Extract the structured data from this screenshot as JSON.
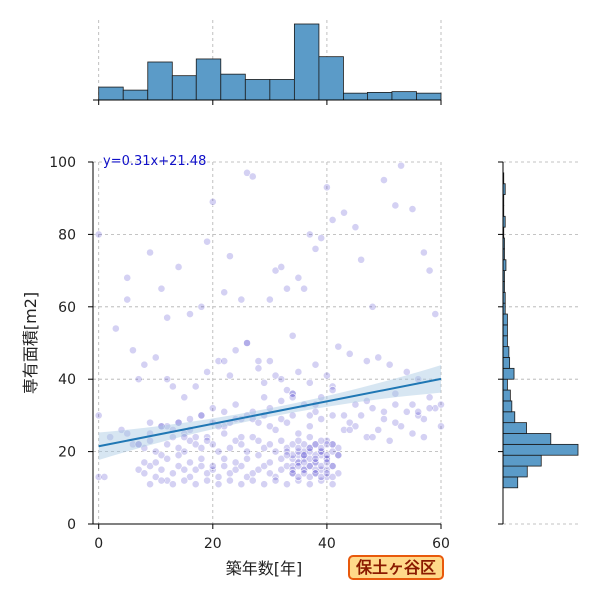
{
  "ward_label": "保土ヶ谷区",
  "colors": {
    "scatter": "#3b2fc9",
    "regression": "#1f77b4",
    "ci_band": "#a6c8e3",
    "hist_fill": "#5b9bc8",
    "hist_edge": "#1a1a1a",
    "grid": "#b0b0b0"
  },
  "chart_data": [
    {
      "type": "scatter",
      "xlabel": "築年数[年]",
      "ylabel": "専有面積[m2]",
      "xlim": [
        -1,
        60
      ],
      "ylim": [
        0,
        100
      ],
      "xticks": [
        0,
        20,
        40,
        60
      ],
      "yticks": [
        0,
        20,
        40,
        60,
        80,
        100
      ],
      "grid": true,
      "regression": {
        "equation": "y=0.31x+21.48",
        "slope": 0.31,
        "intercept": 21.48,
        "x_range": [
          0,
          60
        ]
      },
      "points_x": [
        0,
        0,
        0,
        1,
        3,
        5,
        5,
        6,
        7,
        9,
        11,
        12,
        13,
        14,
        16,
        18,
        19,
        20,
        22,
        23,
        25,
        26,
        27,
        30,
        31,
        32,
        33,
        35,
        36,
        37,
        38,
        39,
        40,
        41,
        43,
        45,
        46,
        48,
        50,
        52,
        53,
        55,
        57,
        58,
        59,
        8,
        10,
        12,
        15,
        17,
        19,
        21,
        23,
        24,
        26,
        28,
        29,
        31,
        33,
        34,
        35,
        37,
        38,
        40,
        41,
        42,
        44,
        47,
        49,
        51,
        54,
        56,
        2,
        4,
        6,
        9,
        11,
        14,
        16,
        18,
        20,
        22,
        24,
        27,
        29,
        30,
        32,
        34,
        36,
        38,
        39,
        41,
        43,
        45,
        47,
        50,
        52,
        55,
        57,
        59,
        7,
        8,
        9,
        10,
        11,
        12,
        13,
        14,
        15,
        16,
        17,
        18,
        19,
        20,
        21,
        22,
        23,
        24,
        25,
        26,
        27,
        28,
        29,
        30,
        31,
        32,
        33,
        34,
        35,
        36,
        37,
        38,
        39,
        40,
        41,
        42,
        7,
        8,
        9,
        10,
        11,
        12,
        13,
        14,
        15,
        16,
        17,
        18,
        19,
        20,
        21,
        22,
        23,
        24,
        25,
        26,
        27,
        28,
        29,
        30,
        31,
        32,
        33,
        34,
        35,
        36,
        37,
        38,
        39,
        40,
        41,
        42,
        8,
        10,
        12,
        14,
        16,
        18,
        20,
        22,
        24,
        26,
        28,
        30,
        32,
        34,
        36,
        38,
        40,
        42,
        9,
        11,
        13,
        15,
        17,
        19,
        21,
        23,
        25,
        27,
        29,
        31,
        33,
        35,
        37,
        39,
        41,
        34,
        35,
        36,
        37,
        38,
        39,
        40,
        34,
        35,
        36,
        37,
        38,
        39,
        40,
        41,
        33,
        34,
        35,
        36,
        37,
        38,
        39,
        40,
        41,
        42,
        34,
        35,
        36,
        37,
        38,
        39,
        40,
        41,
        35,
        36,
        37,
        38,
        39,
        40,
        36,
        38,
        40,
        35,
        37,
        39,
        41,
        12,
        14,
        16,
        18,
        20,
        22,
        24,
        26,
        28,
        30,
        32,
        34,
        44,
        46,
        48,
        50,
        52,
        54,
        56,
        58,
        45,
        47,
        49,
        51,
        53,
        55,
        57,
        7,
        9,
        11,
        13,
        15,
        17,
        19,
        21,
        23,
        25,
        27,
        29,
        31,
        33,
        35,
        37,
        39,
        41,
        43,
        5,
        15,
        25,
        33,
        37,
        44,
        48,
        52,
        56,
        60,
        60,
        58,
        28,
        30,
        32,
        34,
        22,
        26,
        34,
        38
      ],
      "points_y": [
        80,
        30,
        13,
        13,
        54,
        68,
        62,
        48,
        40,
        75,
        65,
        57,
        38,
        71,
        58,
        60,
        78,
        89,
        64,
        74,
        62,
        97,
        96,
        62,
        70,
        71,
        65,
        68,
        65,
        80,
        76,
        79,
        93,
        84,
        86,
        82,
        73,
        60,
        95,
        88,
        99,
        87,
        75,
        70,
        58,
        44,
        46,
        40,
        35,
        38,
        42,
        45,
        41,
        48,
        50,
        43,
        39,
        41,
        37,
        36,
        42,
        39,
        44,
        41,
        38,
        49,
        47,
        45,
        46,
        44,
        42,
        40,
        24,
        26,
        22,
        25,
        27,
        28,
        26,
        30,
        32,
        31,
        33,
        29,
        35,
        32,
        34,
        36,
        33,
        31,
        35,
        37,
        30,
        33,
        34,
        31,
        36,
        33,
        29,
        32,
        22,
        21,
        23,
        20,
        19,
        22,
        24,
        21,
        20,
        23,
        22,
        21,
        24,
        22,
        20,
        25,
        21,
        23,
        22,
        20,
        24,
        23,
        21,
        22,
        20,
        23,
        21,
        22,
        19,
        20,
        21,
        22,
        20,
        23,
        22,
        21,
        15,
        14,
        16,
        13,
        15,
        12,
        14,
        16,
        15,
        13,
        15,
        16,
        14,
        15,
        13,
        16,
        14,
        15,
        16,
        13,
        14,
        15,
        16,
        14,
        13,
        15,
        16,
        14,
        17,
        15,
        16,
        14,
        15,
        13,
        16,
        14,
        17,
        17,
        18,
        19,
        17,
        18,
        16,
        18,
        17,
        18,
        19,
        17,
        18,
        16,
        18,
        17,
        18,
        19,
        11,
        12,
        11,
        12,
        11,
        12,
        11,
        12,
        11,
        12,
        11,
        12,
        11,
        12,
        11,
        12,
        11,
        18,
        17,
        19,
        18,
        17,
        19,
        18,
        15,
        16,
        15,
        16,
        15,
        16,
        15,
        16,
        20,
        19,
        20,
        19,
        20,
        19,
        20,
        19,
        20,
        19,
        14,
        13,
        14,
        13,
        14,
        13,
        14,
        13,
        21,
        22,
        21,
        22,
        21,
        22,
        17,
        18,
        17,
        23,
        24,
        23,
        22,
        27,
        28,
        29,
        30,
        28,
        27,
        29,
        30,
        28,
        27,
        29,
        30,
        28,
        30,
        32,
        29,
        33,
        31,
        30,
        32,
        27,
        24,
        26,
        23,
        27,
        25,
        24,
        22,
        28,
        27,
        26,
        25,
        24,
        23,
        27,
        28,
        29,
        31,
        30,
        26,
        28,
        25,
        27,
        29,
        30,
        26,
        25,
        24,
        24,
        19,
        30,
        26,
        24,
        28,
        31,
        33,
        27,
        35,
        45,
        45,
        40,
        35,
        45,
        50,
        52,
        33,
        38,
        32,
        31
      ]
    },
    {
      "type": "bar",
      "orientation": "vertical",
      "axis": "x",
      "bin_edges": [
        0,
        4.3,
        8.6,
        12.9,
        17.1,
        21.4,
        25.7,
        30,
        34.3,
        38.6,
        42.9,
        47.1,
        51.4,
        55.7,
        60
      ],
      "counts": [
        17,
        13,
        50,
        32,
        54,
        34,
        27,
        27,
        100,
        57,
        9,
        10,
        11,
        9
      ]
    },
    {
      "type": "bar",
      "orientation": "horizontal",
      "axis": "y",
      "bin_edges": [
        10,
        13,
        16,
        19,
        22,
        25,
        28,
        31,
        34,
        37,
        40,
        43,
        46,
        49,
        52,
        55,
        58,
        61,
        64,
        67,
        70,
        73,
        76,
        79,
        82,
        85,
        88,
        91,
        94,
        97
      ],
      "counts": [
        20,
        33,
        52,
        102,
        65,
        32,
        16,
        12,
        10,
        6,
        15,
        9,
        8,
        6,
        6,
        6,
        3,
        3,
        2,
        2,
        4,
        2,
        2,
        1,
        3,
        1,
        1,
        3,
        1
      ]
    }
  ]
}
